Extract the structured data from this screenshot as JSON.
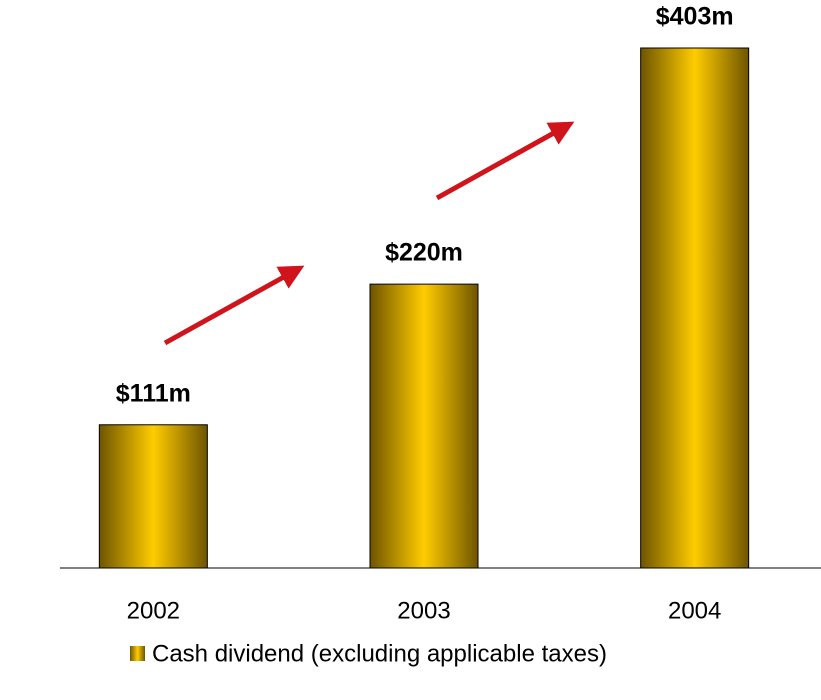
{
  "chart_data": {
    "type": "bar",
    "categories": [
      "2002",
      "2003",
      "2004"
    ],
    "series": [
      {
        "name": "Cash dividend (excluding applicable taxes)",
        "color": "#ffcc00",
        "values": [
          111,
          220,
          403
        ],
        "value_labels": [
          "$111m",
          "$220m",
          "$403m"
        ]
      }
    ]
  }
}
